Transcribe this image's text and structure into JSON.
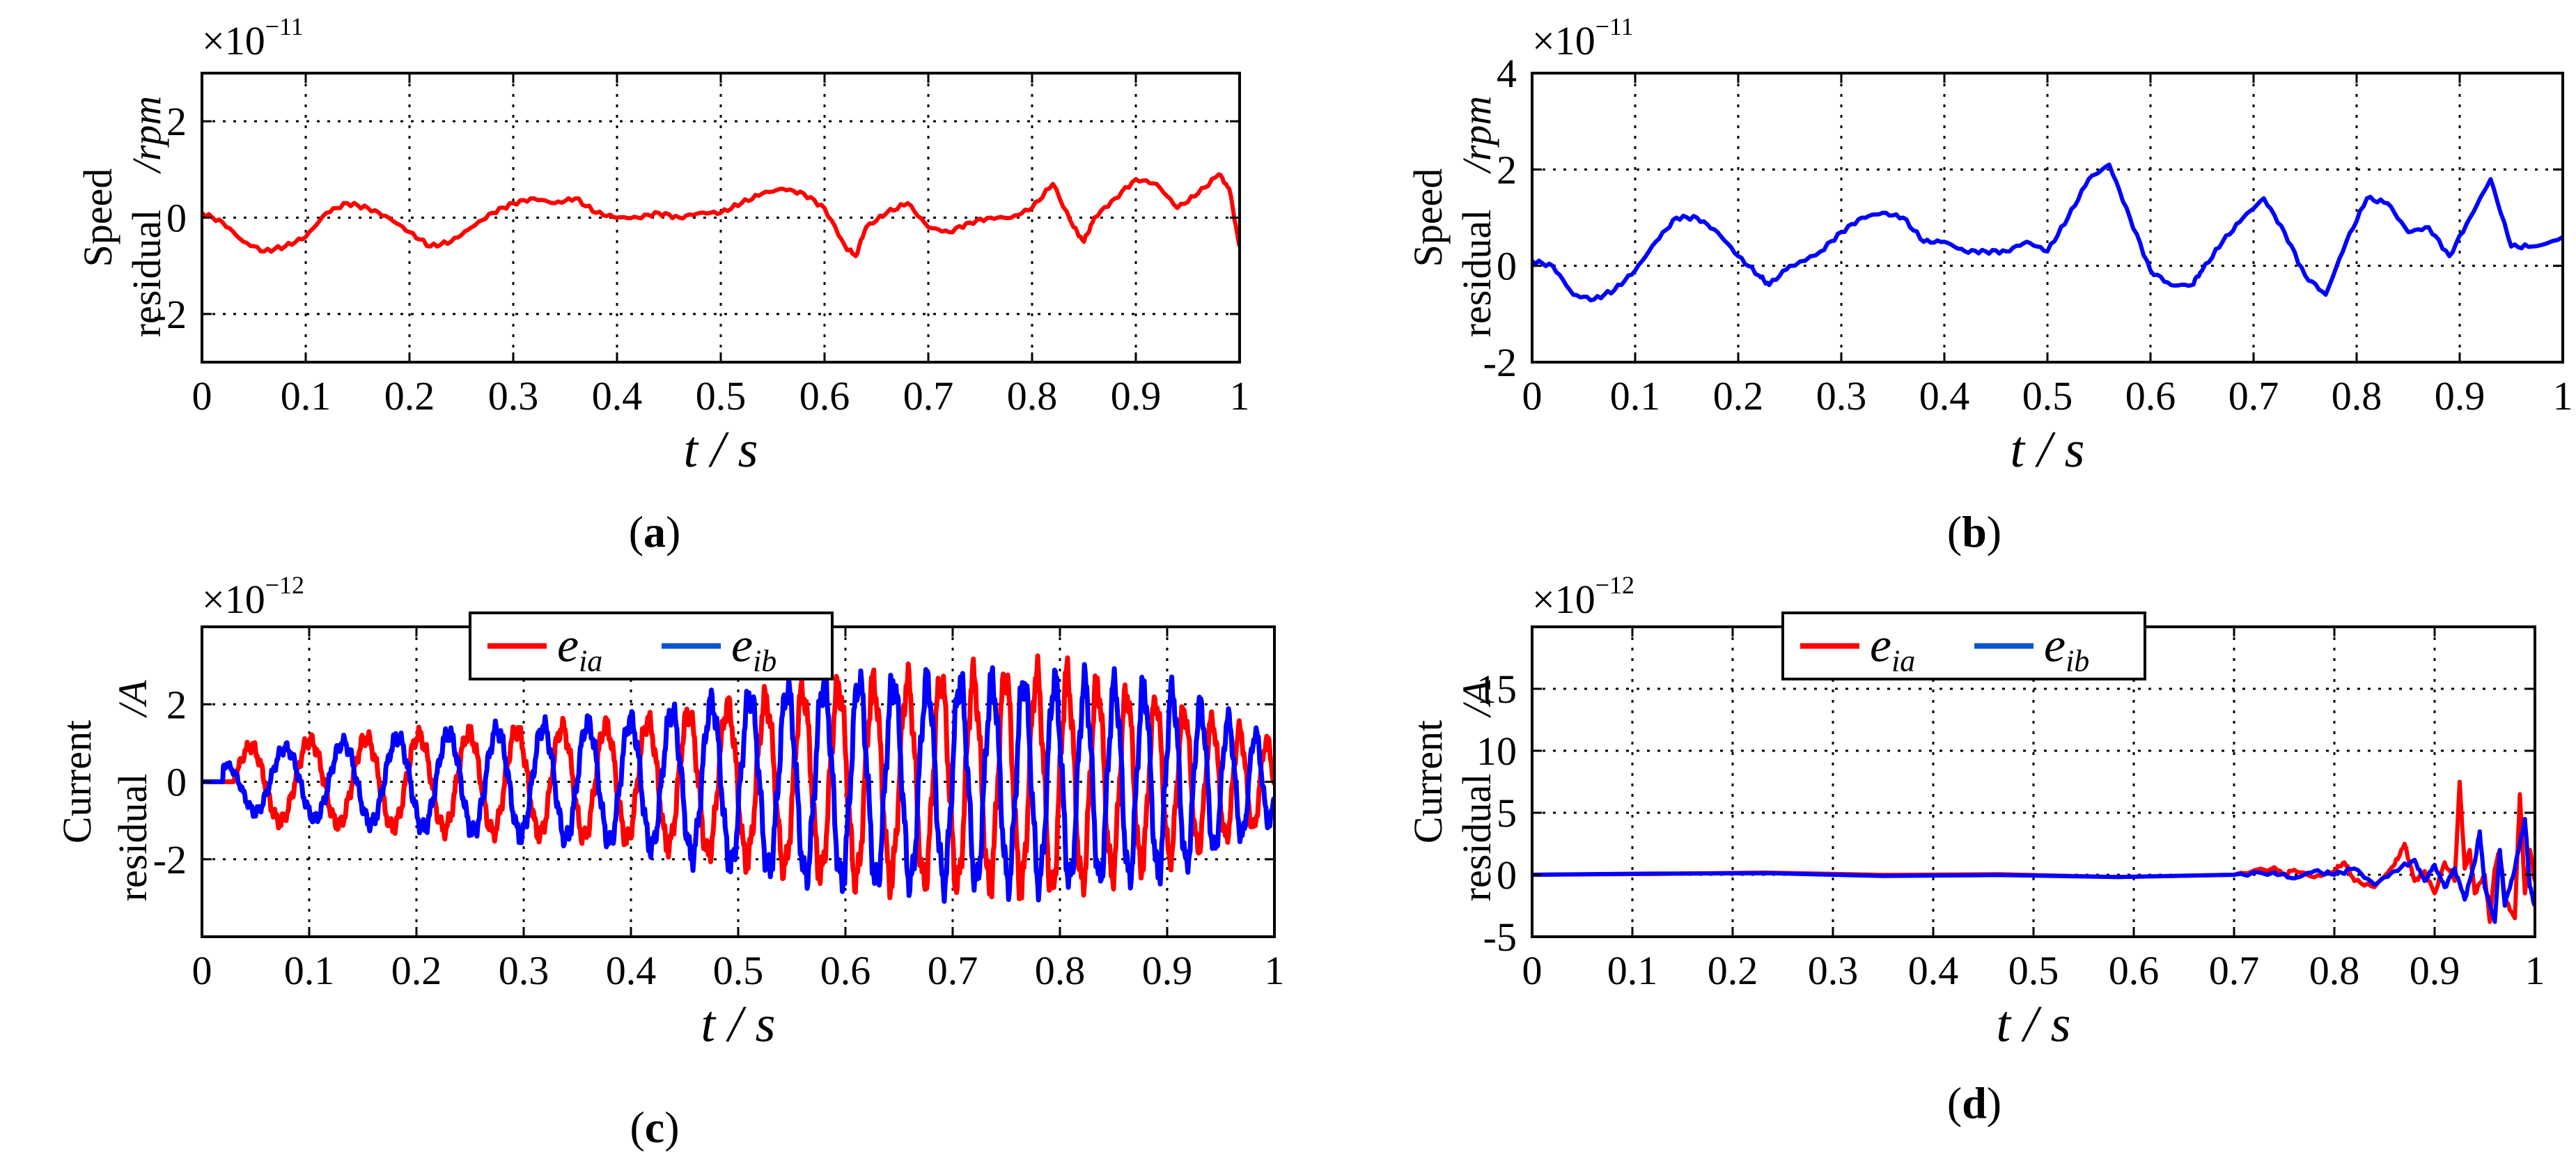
{
  "chart_data": [
    {
      "id": "a",
      "type": "line",
      "panel_label": "a",
      "xlabel": "t / s",
      "ylabel_line1": "Speed",
      "ylabel_line2": "residual",
      "ylabel_unit": "/rpm",
      "exponent_text": "×10",
      "exponent_power": "−11",
      "xlim": [
        0,
        1
      ],
      "ylim": [
        -3,
        3
      ],
      "xticks": [
        "0",
        "0.1",
        "0.2",
        "0.3",
        "0.4",
        "0.5",
        "0.6",
        "0.7",
        "0.8",
        "0.9",
        "1"
      ],
      "yticks": [
        {
          "v": 2,
          "label": "2"
        },
        {
          "v": 0,
          "label": "0"
        },
        {
          "v": -2,
          "label": "-2"
        }
      ],
      "grid": true,
      "series": [
        {
          "color": "#ff0000",
          "x": [
            0,
            0.02,
            0.04,
            0.06,
            0.08,
            0.1,
            0.12,
            0.14,
            0.16,
            0.18,
            0.2,
            0.22,
            0.24,
            0.26,
            0.28,
            0.3,
            0.32,
            0.34,
            0.36,
            0.38,
            0.4,
            0.42,
            0.44,
            0.46,
            0.48,
            0.5,
            0.52,
            0.54,
            0.56,
            0.58,
            0.6,
            0.62,
            0.63,
            0.64,
            0.66,
            0.68,
            0.7,
            0.72,
            0.74,
            0.76,
            0.78,
            0.8,
            0.82,
            0.84,
            0.85,
            0.86,
            0.88,
            0.9,
            0.92,
            0.94,
            0.96,
            0.98,
            0.99,
            1.0
          ],
          "y": [
            0.1,
            -0.1,
            -0.5,
            -0.7,
            -0.6,
            -0.4,
            0.1,
            0.3,
            0.2,
            0.0,
            -0.3,
            -0.6,
            -0.5,
            -0.2,
            0.1,
            0.3,
            0.4,
            0.3,
            0.4,
            0.1,
            0.0,
            0.0,
            0.1,
            0.0,
            0.1,
            0.1,
            0.3,
            0.5,
            0.6,
            0.5,
            0.2,
            -0.6,
            -0.8,
            -0.2,
            0.1,
            0.3,
            -0.2,
            -0.3,
            -0.1,
            0.0,
            0.0,
            0.2,
            0.7,
            -0.2,
            -0.5,
            0.0,
            0.4,
            0.8,
            0.7,
            0.2,
            0.5,
            0.9,
            0.6,
            -0.6
          ]
        }
      ]
    },
    {
      "id": "b",
      "type": "line",
      "panel_label": "b",
      "xlabel": "t / s",
      "ylabel_line1": "Speed",
      "ylabel_line2": "residual",
      "ylabel_unit": "/rpm",
      "exponent_text": "×10",
      "exponent_power": "−11",
      "xlim": [
        0,
        1
      ],
      "ylim": [
        -2,
        4
      ],
      "xticks": [
        "0",
        "0.1",
        "0.2",
        "0.3",
        "0.4",
        "0.5",
        "0.6",
        "0.7",
        "0.8",
        "0.9",
        "1"
      ],
      "yticks": [
        {
          "v": 4,
          "label": "4"
        },
        {
          "v": 2,
          "label": "2"
        },
        {
          "v": 0,
          "label": "0"
        },
        {
          "v": -2,
          "label": "-2"
        }
      ],
      "grid": true,
      "series": [
        {
          "color": "#0000ff",
          "x": [
            0,
            0.02,
            0.04,
            0.06,
            0.08,
            0.1,
            0.12,
            0.14,
            0.16,
            0.18,
            0.2,
            0.22,
            0.23,
            0.25,
            0.28,
            0.3,
            0.32,
            0.34,
            0.36,
            0.38,
            0.4,
            0.42,
            0.44,
            0.46,
            0.48,
            0.5,
            0.52,
            0.54,
            0.56,
            0.58,
            0.6,
            0.62,
            0.64,
            0.65,
            0.67,
            0.69,
            0.71,
            0.73,
            0.75,
            0.77,
            0.79,
            0.81,
            0.83,
            0.85,
            0.87,
            0.89,
            0.91,
            0.93,
            0.95,
            0.97,
            1.0
          ],
          "y": [
            0.1,
            0.0,
            -0.6,
            -0.7,
            -0.5,
            -0.1,
            0.5,
            1.0,
            1.0,
            0.7,
            0.2,
            -0.2,
            -0.4,
            0.0,
            0.3,
            0.7,
            1.0,
            1.1,
            1.0,
            0.5,
            0.5,
            0.3,
            0.3,
            0.3,
            0.5,
            0.3,
            1.0,
            1.8,
            2.1,
            1.0,
            -0.1,
            -0.4,
            -0.4,
            -0.1,
            0.5,
            1.0,
            1.4,
            0.7,
            -0.2,
            -0.6,
            0.5,
            1.4,
            1.3,
            0.7,
            0.8,
            0.2,
            1.0,
            1.8,
            0.4,
            0.4,
            0.6
          ]
        }
      ]
    },
    {
      "id": "c",
      "type": "line",
      "panel_label": "c",
      "xlabel": "t / s",
      "ylabel_line1": "Current",
      "ylabel_line2": "residual",
      "ylabel_unit": "/A",
      "exponent_text": "×10",
      "exponent_power": "−12",
      "xlim": [
        0,
        1
      ],
      "ylim": [
        -4,
        4
      ],
      "xticks": [
        "0",
        "0.1",
        "0.2",
        "0.3",
        "0.4",
        "0.5",
        "0.6",
        "0.7",
        "0.8",
        "0.9",
        "1"
      ],
      "yticks": [
        {
          "v": 2,
          "label": "2"
        },
        {
          "v": 0,
          "label": "0"
        },
        {
          "v": -2,
          "label": "-2"
        }
      ],
      "grid": true,
      "legend": {
        "placement": "top-center",
        "entries": [
          {
            "name": "e",
            "sub": "ia",
            "color": "#ff0000"
          },
          {
            "name": "e",
            "sub": "ib",
            "color": "#0055cc"
          }
        ]
      },
      "series": [
        {
          "name": "e_ia",
          "color": "#ff0000",
          "osc": {
            "start": 0.03,
            "amp": [
              [
                0,
                0.2
              ],
              [
                0.05,
                1.0
              ],
              [
                0.2,
                1.2
              ],
              [
                0.4,
                1.5
              ],
              [
                0.5,
                2.0
              ],
              [
                0.6,
                2.5
              ],
              [
                0.8,
                2.8
              ],
              [
                0.9,
                2.0
              ],
              [
                1.0,
                1.0
              ]
            ],
            "freq_start": 16,
            "freq_end": 40,
            "phase": 0
          }
        },
        {
          "name": "e_ib",
          "color": "#0000ff",
          "osc": {
            "start": 0.02,
            "amp": [
              [
                0,
                0.2
              ],
              [
                0.05,
                0.8
              ],
              [
                0.2,
                1.2
              ],
              [
                0.4,
                1.6
              ],
              [
                0.5,
                2.2
              ],
              [
                0.6,
                2.6
              ],
              [
                0.8,
                2.6
              ],
              [
                0.9,
                2.4
              ],
              [
                1.0,
                1.0
              ]
            ],
            "freq_start": 16,
            "freq_end": 40,
            "phase": 1.57
          }
        }
      ]
    },
    {
      "id": "d",
      "type": "line",
      "panel_label": "d",
      "xlabel": "t / s",
      "ylabel_line1": "Current",
      "ylabel_line2": "residual",
      "ylabel_unit": "/A",
      "exponent_text": "×10",
      "exponent_power": "−12",
      "xlim": [
        0,
        1
      ],
      "ylim": [
        -5,
        20
      ],
      "xticks": [
        "0",
        "0.1",
        "0.2",
        "0.3",
        "0.4",
        "0.5",
        "0.6",
        "0.7",
        "0.8",
        "0.9",
        "1"
      ],
      "yticks": [
        {
          "v": 15,
          "label": "15"
        },
        {
          "v": 10,
          "label": "10"
        },
        {
          "v": 5,
          "label": "5"
        },
        {
          "v": 0,
          "label": "0"
        },
        {
          "v": -5,
          "label": "-5"
        }
      ],
      "grid": true,
      "legend": {
        "placement": "top-center",
        "entries": [
          {
            "name": "e",
            "sub": "ia",
            "color": "#ff0000"
          },
          {
            "name": "e",
            "sub": "ib",
            "color": "#0055cc"
          }
        ]
      },
      "series": [
        {
          "name": "e_ia",
          "color": "#ff0000",
          "x": [
            0,
            0.7,
            0.74,
            0.75,
            0.76,
            0.78,
            0.8,
            0.81,
            0.82,
            0.84,
            0.86,
            0.87,
            0.88,
            0.89,
            0.9,
            0.91,
            0.92,
            0.925,
            0.93,
            0.935,
            0.94,
            0.95,
            0.955,
            0.96,
            0.965,
            0.97,
            0.98,
            0.985,
            0.99,
            0.995,
            1.0
          ],
          "y": [
            0,
            0,
            0.6,
            0,
            0.4,
            -0.2,
            0.3,
            1.0,
            -0.5,
            -1.0,
            0.8,
            2.5,
            -0.5,
            0.3,
            -1.5,
            1.0,
            -0.5,
            7.5,
            0.5,
            2.0,
            -1.5,
            0.0,
            -3.8,
            0.5,
            2.0,
            -2.0,
            -3.5,
            6.5,
            -1.5,
            2.0,
            -0.5
          ]
        },
        {
          "name": "e_ib",
          "color": "#0000ff",
          "x": [
            0,
            0.7,
            0.74,
            0.76,
            0.78,
            0.8,
            0.82,
            0.84,
            0.86,
            0.88,
            0.89,
            0.9,
            0.91,
            0.92,
            0.93,
            0.94,
            0.945,
            0.95,
            0.96,
            0.965,
            0.97,
            0.98,
            0.99,
            0.995,
            1.0
          ],
          "y": [
            0,
            0,
            0.2,
            -0.3,
            0.3,
            0,
            0.5,
            -0.8,
            0.3,
            1.2,
            -0.5,
            0.8,
            -1.0,
            0.5,
            -2.0,
            1.0,
            3.5,
            -1.0,
            -3.8,
            2.0,
            -2.5,
            0.5,
            4.5,
            -1.0,
            -2.5
          ]
        }
      ]
    }
  ]
}
